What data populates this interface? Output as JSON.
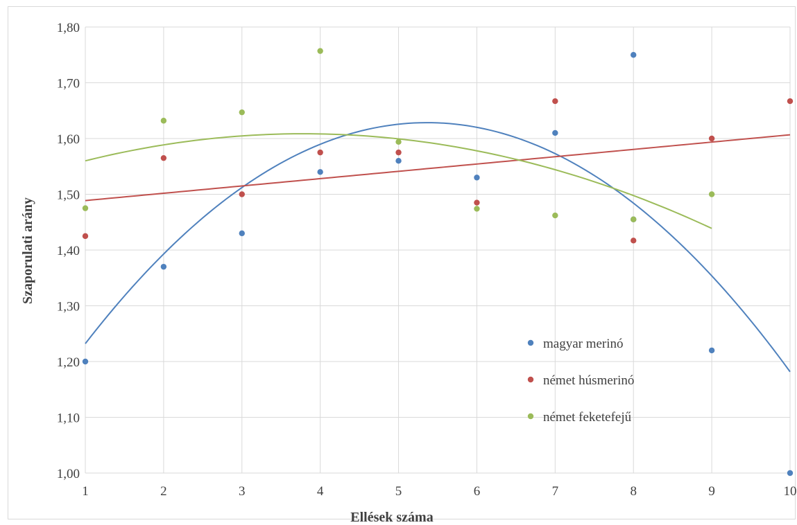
{
  "chart_data": {
    "type": "scatter",
    "title": "",
    "xlabel": "Ellések száma",
    "ylabel": "Szaporulati arány",
    "xlim": [
      1,
      10
    ],
    "ylim": [
      1.0,
      1.8
    ],
    "x_ticks": [
      "1",
      "2",
      "3",
      "4",
      "5",
      "6",
      "7",
      "8",
      "9",
      "10"
    ],
    "y_ticks": [
      "1,00",
      "1,10",
      "1,20",
      "1,30",
      "1,40",
      "1,50",
      "1,60",
      "1,70",
      "1,80"
    ],
    "grid": true,
    "legend_position": "lower-right",
    "series": [
      {
        "name": "magyar merinó",
        "color": "#4f81bd",
        "points": [
          {
            "x": 1,
            "y": 1.2
          },
          {
            "x": 2,
            "y": 1.37
          },
          {
            "x": 3,
            "y": 1.43
          },
          {
            "x": 4,
            "y": 1.54
          },
          {
            "x": 5,
            "y": 1.56
          },
          {
            "x": 6,
            "y": 1.53
          },
          {
            "x": 7,
            "y": 1.61
          },
          {
            "x": 8,
            "y": 1.75
          },
          {
            "x": 8,
            "y": 1.455
          },
          {
            "x": 9,
            "y": 1.22
          },
          {
            "x": 10,
            "y": 1.0
          }
        ],
        "trendline": {
          "type": "polynomial",
          "order": 2,
          "a": -0.0208,
          "b": 0.2232,
          "c": 1.0297
        }
      },
      {
        "name": "német húsmerinó",
        "color": "#c0504d",
        "points": [
          {
            "x": 1,
            "y": 1.425
          },
          {
            "x": 2,
            "y": 1.565
          },
          {
            "x": 3,
            "y": 1.5
          },
          {
            "x": 4,
            "y": 1.575
          },
          {
            "x": 5,
            "y": 1.575
          },
          {
            "x": 6,
            "y": 1.485
          },
          {
            "x": 7,
            "y": 1.667
          },
          {
            "x": 8,
            "y": 1.417
          },
          {
            "x": 9,
            "y": 1.6
          },
          {
            "x": 10,
            "y": 1.667
          }
        ],
        "trendline": {
          "type": "linear",
          "slope": 0.01311,
          "intercept": 1.4756
        }
      },
      {
        "name": "német feketefejű",
        "color": "#9bbb59",
        "points": [
          {
            "x": 1,
            "y": 1.475
          },
          {
            "x": 2,
            "y": 1.632
          },
          {
            "x": 3,
            "y": 1.647
          },
          {
            "x": 4,
            "y": 1.757
          },
          {
            "x": 5,
            "y": 1.594
          },
          {
            "x": 6,
            "y": 1.474
          },
          {
            "x": 7,
            "y": 1.462
          },
          {
            "x": 8,
            "y": 1.455
          },
          {
            "x": 9,
            "y": 1.5
          }
        ],
        "trendline": {
          "type": "polynomial",
          "order": 2,
          "a": -0.00625,
          "b": 0.04735,
          "c": 1.5189,
          "x_end": 9
        }
      }
    ]
  }
}
